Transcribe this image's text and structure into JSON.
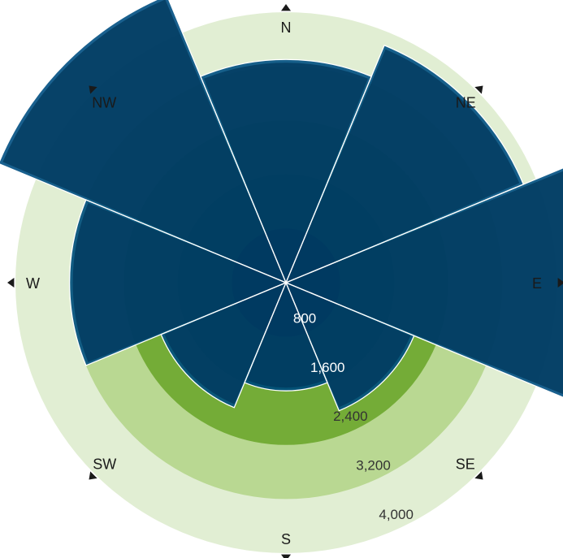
{
  "chart_data": {
    "type": "radial-bar",
    "title": "",
    "directions": [
      "N",
      "NE",
      "E",
      "SE",
      "S",
      "SW",
      "W",
      "NW"
    ],
    "values": [
      3300,
      3800,
      5050,
      2050,
      1600,
      2000,
      3200,
      4600
    ],
    "rings": [
      800,
      1600,
      2400,
      3200,
      4000
    ],
    "ring_labels": [
      "800",
      "1,600",
      "2,400",
      "3,200",
      "4,000"
    ],
    "rmax": 4000,
    "grid": true,
    "colors": {
      "ring_fills": [
        "#000000",
        "#2c7512",
        "#74ac37",
        "#b9d892",
        "#e1eed3"
      ],
      "sector_fill": "#00365a",
      "sector_edge": "#004f82",
      "sector_stroke": "#ffffff",
      "ring_label_light": "#ffffff",
      "ring_label_dark": "#333333",
      "arrow": "#1a1a1a"
    }
  }
}
